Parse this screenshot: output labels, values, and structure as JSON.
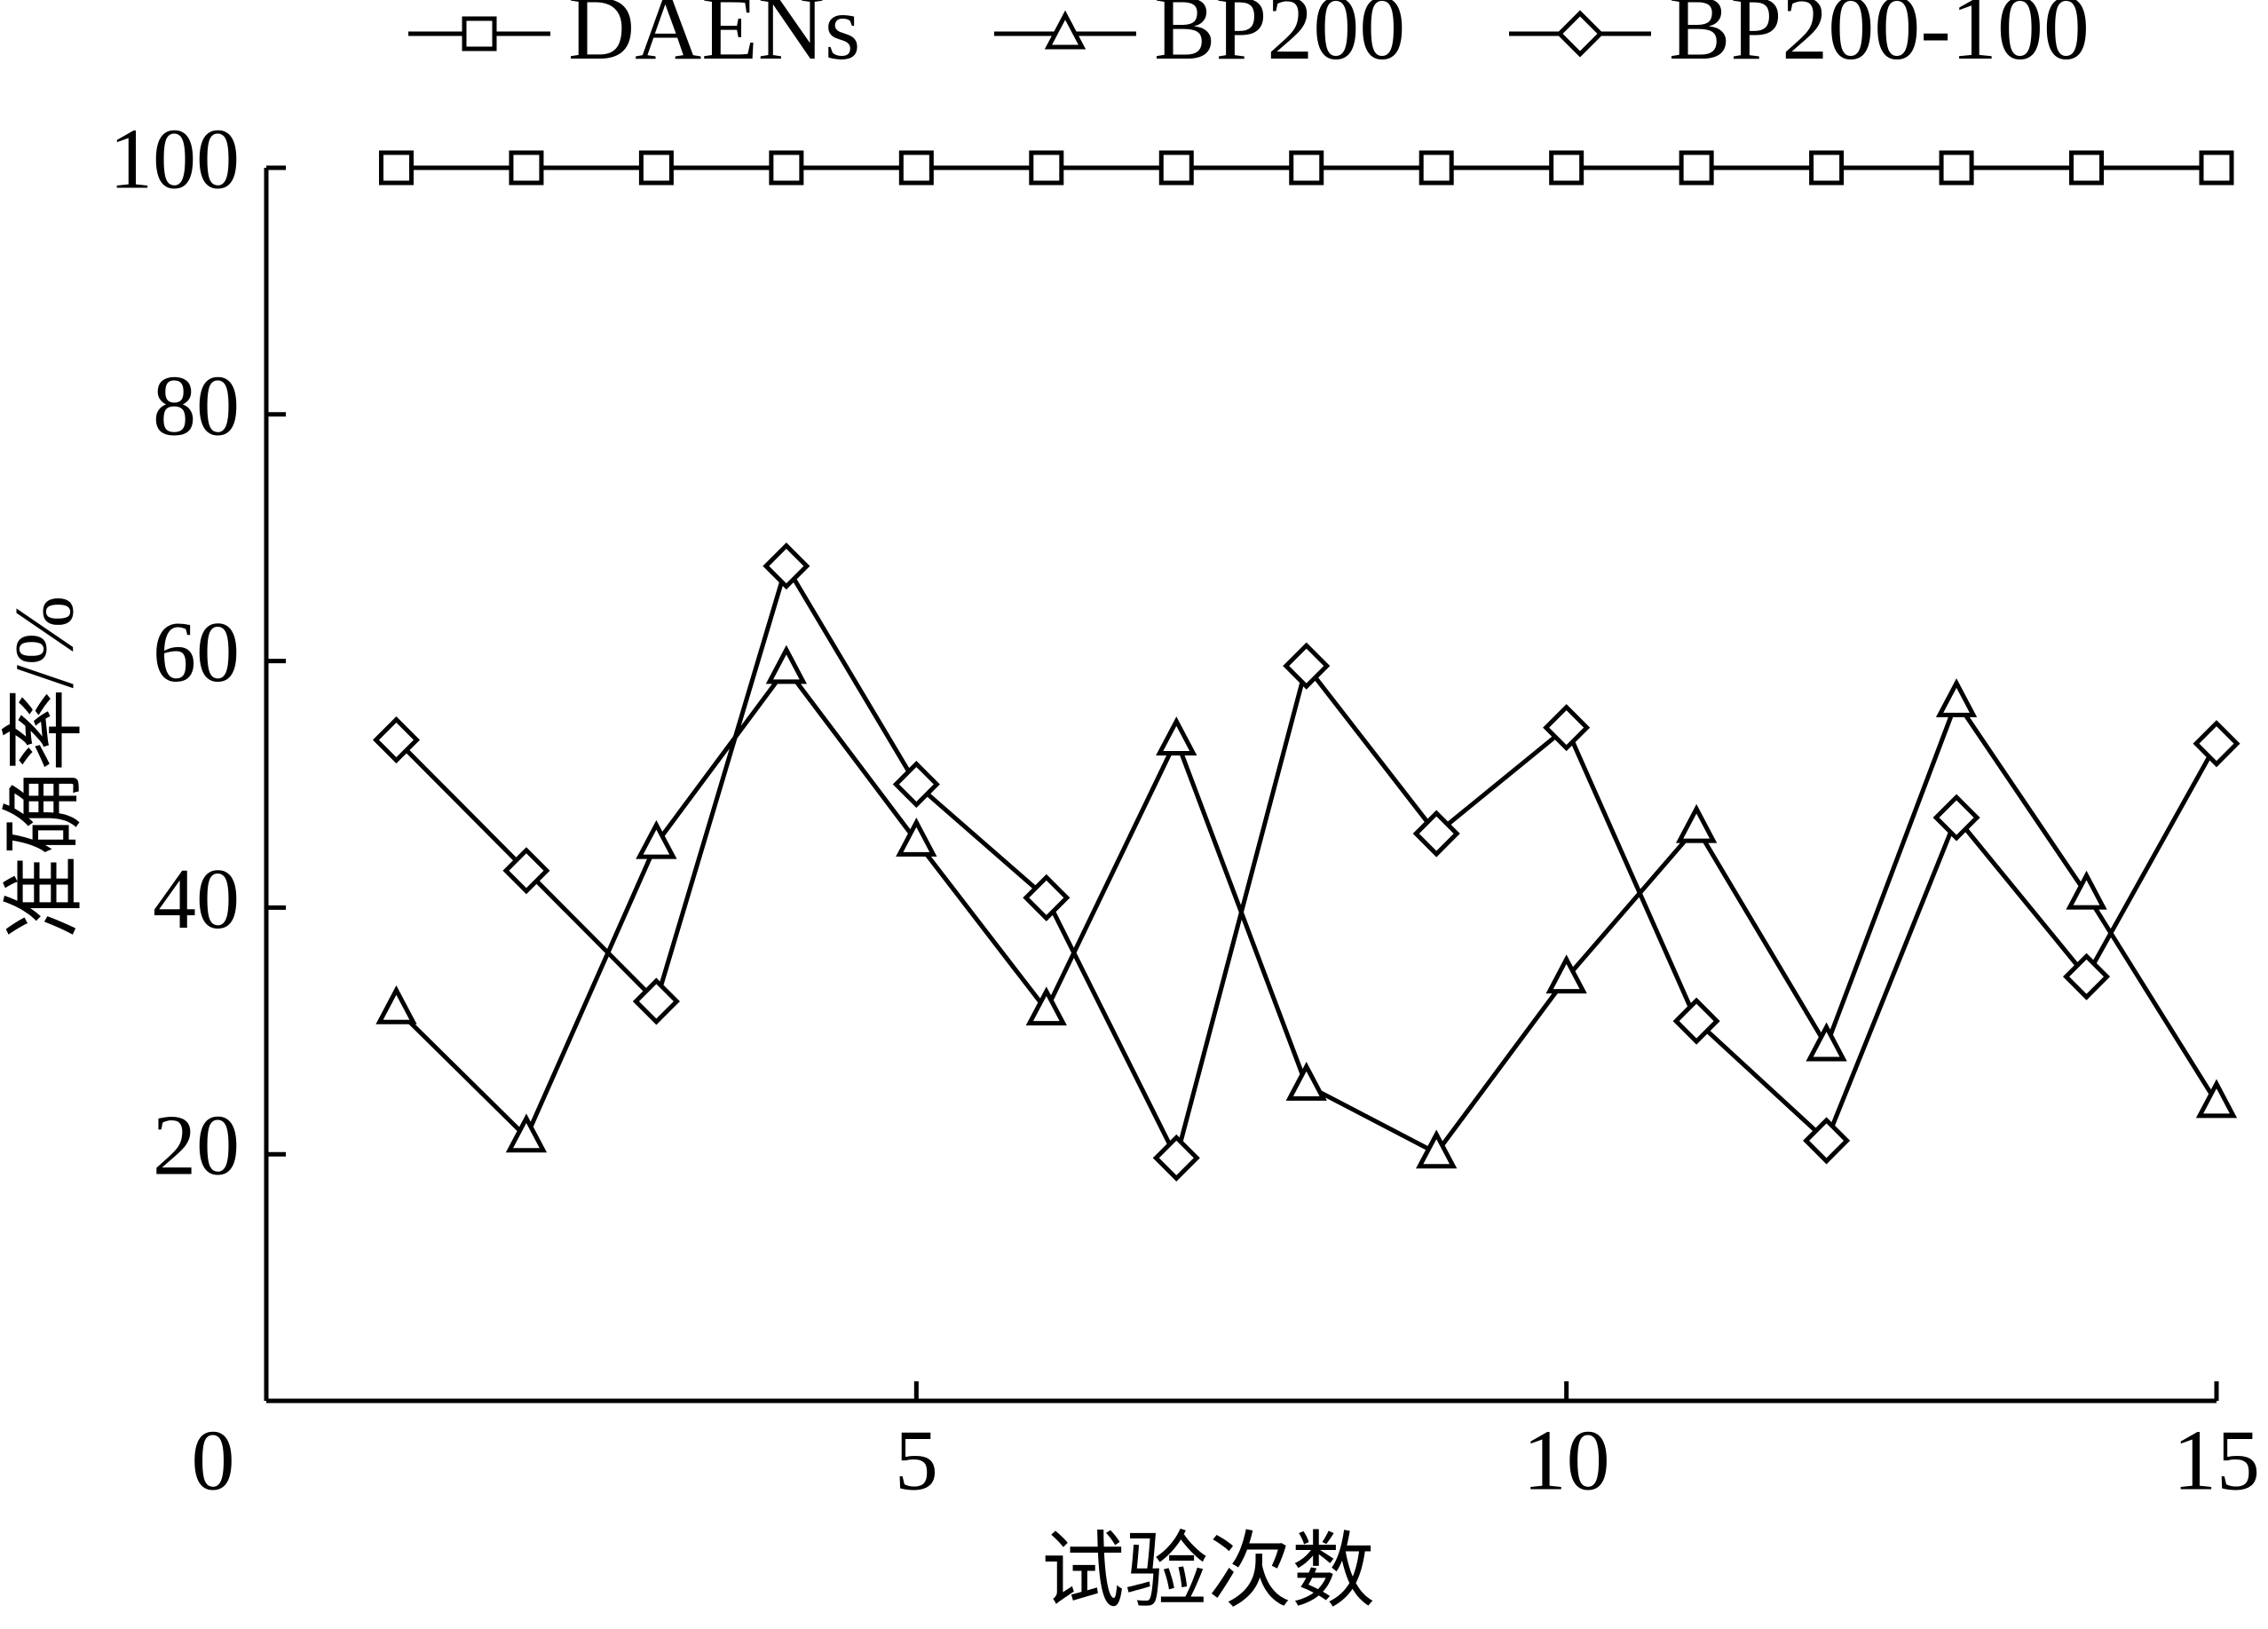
{
  "chart_data": {
    "type": "line",
    "y_label": "准确率/%",
    "x_label": "试验次数",
    "x": [
      1,
      2,
      3,
      4,
      5,
      6,
      7,
      8,
      9,
      10,
      11,
      12,
      13,
      14,
      15
    ],
    "series": [
      {
        "name": "DAENs",
        "color": "#000000",
        "marker": "square",
        "values": [
          100,
          100,
          100,
          100,
          100,
          100,
          100,
          100,
          100,
          100,
          100,
          100,
          100,
          100,
          100
        ]
      },
      {
        "name": "BP200",
        "color": "#000000",
        "marker": "triangle",
        "values": [
          31.8,
          21.4,
          45.2,
          59.4,
          45.4,
          31.7,
          53.6,
          25.6,
          20.1,
          34.3,
          46.5,
          28.8,
          56.7,
          41.1,
          24.2
        ]
      },
      {
        "name": "BP200-100",
        "color": "#000000",
        "marker": "diamond",
        "values": [
          53.6,
          43,
          32.4,
          67.7,
          50,
          40.8,
          19.7,
          59.6,
          46,
          54.6,
          30.8,
          21.1,
          47.3,
          34.4,
          53.3
        ]
      }
    ],
    "xlim": [
      0,
      15
    ],
    "xticks": [
      0,
      5,
      10,
      15
    ],
    "ylim": [
      0,
      100
    ],
    "yticks": [
      20,
      40,
      60,
      80,
      100
    ],
    "legend": "top"
  }
}
